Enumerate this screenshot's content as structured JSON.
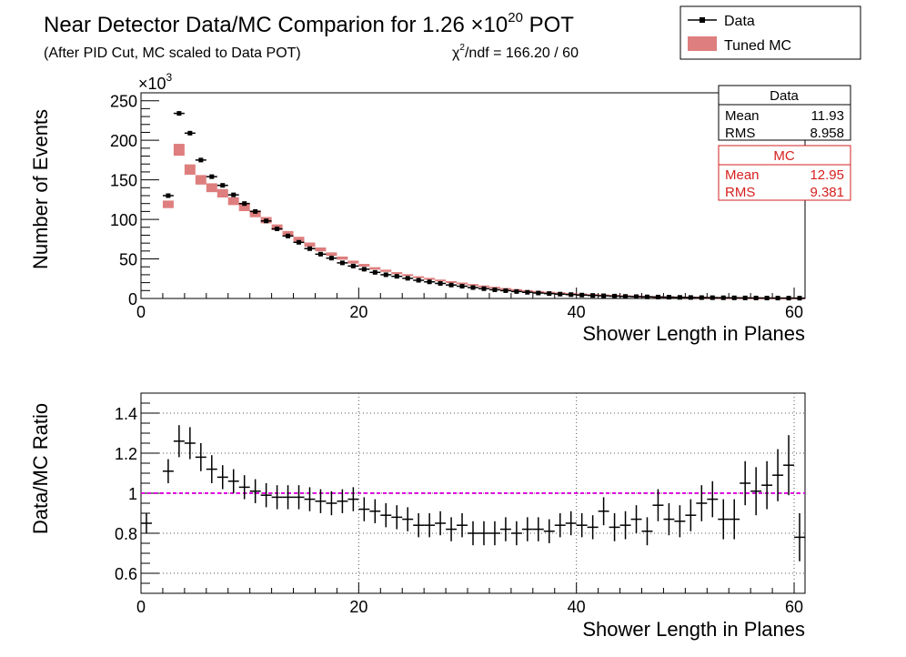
{
  "header": {
    "title": "Near Detector Data/MC Comparion for 1.26 ×10",
    "title_exp": "20",
    "title_suffix": " POT",
    "subtitle": "(After PID Cut, MC scaled to Data POT)",
    "chi2_symbol": "χ",
    "chi2_exp": "2",
    "chi2_rest": "/ndf = 166.20 / 60"
  },
  "legend": {
    "placement": "top-right",
    "data_label": "Data",
    "mc_label": "Tuned MC"
  },
  "stats": {
    "data": {
      "title": "Data",
      "mean_label": "Mean",
      "mean": "11.93",
      "rms_label": "RMS",
      "rms": "8.958"
    },
    "mc": {
      "title": "MC",
      "mean_label": "Mean",
      "mean": "12.95",
      "rms_label": "RMS",
      "rms": "9.381"
    }
  },
  "colors": {
    "data": "#000000",
    "mc": "#d62020",
    "mc_band": "#c82828",
    "ratio_line": "#e000e0",
    "grid": "#555555"
  },
  "chart_data": [
    {
      "type": "scatter",
      "title": "",
      "xlabel": "Shower Length in Planes",
      "ylabel": "Number of Events",
      "y_multiplier": "×10",
      "y_multiplier_exp": "3",
      "xlim": [
        0,
        61
      ],
      "ylim": [
        0,
        260
      ],
      "xticks": [
        0,
        20,
        40,
        60
      ],
      "yticks": [
        0,
        50,
        100,
        150,
        200,
        250
      ],
      "grid": false,
      "series": [
        {
          "name": "Data",
          "x": [
            2.5,
            3.5,
            4.5,
            5.5,
            6.5,
            7.5,
            8.5,
            9.5,
            10.5,
            11.5,
            12.5,
            13.5,
            14.5,
            15.5,
            16.5,
            17.5,
            18.5,
            19.5,
            20.5,
            21.5,
            22.5,
            23.5,
            24.5,
            25.5,
            26.5,
            27.5,
            28.5,
            29.5,
            30.5,
            31.5,
            32.5,
            33.5,
            34.5,
            35.5,
            36.5,
            37.5,
            38.5,
            39.5,
            40.5,
            41.5,
            42.5,
            43.5,
            44.5,
            45.5,
            46.5,
            47.5,
            48.5,
            49.5,
            50.5,
            51.5,
            52.5,
            53.5,
            54.5,
            55.5,
            56.5,
            57.5,
            58.5,
            59.5,
            60.5
          ],
          "values": [
            130,
            234,
            209,
            175,
            154,
            143,
            131,
            120,
            110,
            98,
            88,
            79,
            71,
            63,
            56,
            51,
            45,
            41,
            37,
            33,
            30,
            28,
            25.5,
            23,
            21,
            19,
            17,
            15.5,
            13.8,
            12.4,
            11,
            9.9,
            8.8,
            7.8,
            6.9,
            6.2,
            5.5,
            4.9,
            4.3,
            3.8,
            3.4,
            3.0,
            2.6,
            2.3,
            2.0,
            1.8,
            1.6,
            1.4,
            1.25,
            1.1,
            1.0,
            0.9,
            0.8,
            0.7,
            0.62,
            0.55,
            0.5,
            0.45,
            0.4
          ]
        },
        {
          "name": "Tuned MC",
          "x": [
            2.5,
            3.5,
            4.5,
            5.5,
            6.5,
            7.5,
            8.5,
            9.5,
            10.5,
            11.5,
            12.5,
            13.5,
            14.5,
            15.5,
            16.5,
            17.5,
            18.5,
            19.5,
            20.5,
            21.5,
            22.5,
            23.5,
            24.5,
            25.5,
            26.5,
            27.5,
            28.5,
            29.5,
            30.5,
            31.5,
            32.5,
            33.5,
            34.5,
            35.5,
            36.5,
            37.5,
            38.5,
            39.5,
            40.5,
            41.5,
            42.5,
            43.5,
            44.5,
            45.5,
            46.5,
            47.5,
            48.5,
            49.5,
            50.5,
            51.5,
            52.5,
            53.5,
            54.5,
            55.5,
            56.5,
            57.5,
            58.5,
            59.5,
            60.5
          ],
          "values": [
            119,
            188,
            163,
            150,
            140,
            133,
            123,
            115,
            107,
            99,
            90,
            82,
            75,
            68,
            62,
            56,
            51,
            46,
            42,
            38,
            35,
            32,
            29.5,
            27,
            25,
            23,
            21,
            19.2,
            17.3,
            15.5,
            13.8,
            12.3,
            10.9,
            9.6,
            8.5,
            7.6,
            6.8,
            6.0,
            5.3,
            4.7,
            4.1,
            3.6,
            3.2,
            2.8,
            2.4,
            2.1,
            1.85,
            1.6,
            1.4,
            1.2,
            1.05,
            0.95,
            0.8,
            0.7,
            0.6,
            0.52,
            0.45,
            0.4,
            0.36
          ]
        }
      ]
    },
    {
      "type": "scatter",
      "title": "",
      "xlabel": "Shower Length in Planes",
      "ylabel": "Data/MC Ratio",
      "xlim": [
        0,
        61
      ],
      "ylim": [
        0.5,
        1.5
      ],
      "xticks": [
        0,
        20,
        40,
        60
      ],
      "yticks": [
        0.6,
        0.8,
        1,
        1.2,
        1.4
      ],
      "ytick_labels": [
        "0.6",
        "0.8",
        "1",
        "1.2",
        "1.4"
      ],
      "grid": true,
      "reference_line": 1,
      "series": [
        {
          "name": "Data/MC",
          "x": [
            0.5,
            2.5,
            3.5,
            4.5,
            5.5,
            6.5,
            7.5,
            8.5,
            9.5,
            10.5,
            11.5,
            12.5,
            13.5,
            14.5,
            15.5,
            16.5,
            17.5,
            18.5,
            19.5,
            20.5,
            21.5,
            22.5,
            23.5,
            24.5,
            25.5,
            26.5,
            27.5,
            28.5,
            29.5,
            30.5,
            31.5,
            32.5,
            33.5,
            34.5,
            35.5,
            36.5,
            37.5,
            38.5,
            39.5,
            40.5,
            41.5,
            42.5,
            43.5,
            44.5,
            45.5,
            46.5,
            47.5,
            48.5,
            49.5,
            50.5,
            51.5,
            52.5,
            53.5,
            54.5,
            55.5,
            56.5,
            57.5,
            58.5,
            59.5,
            60.5
          ],
          "values": [
            0.85,
            1.11,
            1.26,
            1.25,
            1.18,
            1.12,
            1.08,
            1.06,
            1.03,
            1.01,
            0.99,
            0.98,
            0.98,
            0.98,
            0.97,
            0.96,
            0.95,
            0.96,
            0.97,
            0.92,
            0.91,
            0.89,
            0.88,
            0.87,
            0.84,
            0.84,
            0.85,
            0.82,
            0.84,
            0.8,
            0.8,
            0.8,
            0.82,
            0.8,
            0.82,
            0.82,
            0.81,
            0.84,
            0.85,
            0.84,
            0.83,
            0.91,
            0.83,
            0.84,
            0.87,
            0.81,
            0.94,
            0.87,
            0.86,
            0.89,
            0.95,
            0.97,
            0.87,
            0.87,
            1.05,
            1.01,
            1.04,
            1.09,
            1.14,
            0.78
          ],
          "errors": [
            0.05,
            0.06,
            0.08,
            0.08,
            0.07,
            0.07,
            0.06,
            0.06,
            0.06,
            0.06,
            0.06,
            0.06,
            0.06,
            0.06,
            0.06,
            0.06,
            0.06,
            0.06,
            0.06,
            0.06,
            0.06,
            0.06,
            0.06,
            0.06,
            0.06,
            0.06,
            0.06,
            0.06,
            0.06,
            0.06,
            0.06,
            0.06,
            0.06,
            0.06,
            0.06,
            0.06,
            0.06,
            0.06,
            0.06,
            0.06,
            0.06,
            0.07,
            0.07,
            0.07,
            0.07,
            0.07,
            0.08,
            0.08,
            0.08,
            0.08,
            0.09,
            0.09,
            0.1,
            0.1,
            0.11,
            0.12,
            0.12,
            0.13,
            0.15,
            0.12
          ]
        }
      ]
    }
  ]
}
